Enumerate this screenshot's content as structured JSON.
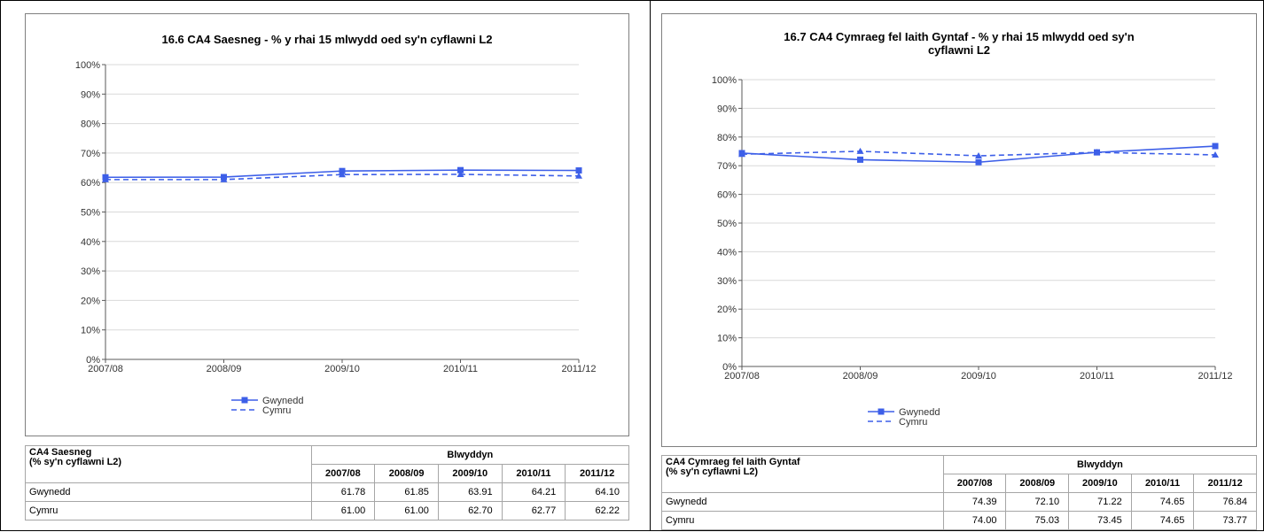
{
  "chart_data": [
    {
      "type": "line",
      "title": "16.6  CA4 Saesneg - % y rhai 15 mlwydd oed sy'n cyflawni L2",
      "categories": [
        "2007/08",
        "2008/09",
        "2009/10",
        "2010/11",
        "2011/12"
      ],
      "ylim": [
        0,
        100
      ],
      "yticks": [
        "0%",
        "10%",
        "20%",
        "30%",
        "40%",
        "50%",
        "60%",
        "70%",
        "80%",
        "90%",
        "100%"
      ],
      "grid": true,
      "legend_position": "bottom-left",
      "series": [
        {
          "name": "Gwynedd",
          "values": [
            61.78,
            61.85,
            63.91,
            64.21,
            64.1
          ],
          "style": "solid",
          "marker": "square"
        },
        {
          "name": "Cymru",
          "values": [
            61.0,
            61.0,
            62.7,
            62.77,
            62.22
          ],
          "style": "dashed",
          "marker": "triangle"
        }
      ],
      "table": {
        "label_line1": "CA4 Saesneg",
        "label_line2": "(% sy'n cyflawni L2)",
        "group_header": "Blwyddyn",
        "years": [
          "2007/08",
          "2008/09",
          "2009/10",
          "2010/11",
          "2011/12"
        ],
        "rows": [
          {
            "name": "Gwynedd",
            "values": [
              "61.78",
              "61.85",
              "63.91",
              "64.21",
              "64.10"
            ]
          },
          {
            "name": "Cymru",
            "values": [
              "61.00",
              "61.00",
              "62.70",
              "62.77",
              "62.22"
            ]
          }
        ]
      }
    },
    {
      "type": "line",
      "title": "16.7  CA4 Cymraeg fel Iaith Gyntaf - % y rhai 15 mlwydd oed sy'n cyflawni L2",
      "title_line1": "16.7  CA4 Cymraeg fel Iaith Gyntaf - % y rhai 15 mlwydd oed sy'n",
      "title_line2": "cyflawni L2",
      "categories": [
        "2007/08",
        "2008/09",
        "2009/10",
        "2010/11",
        "2011/12"
      ],
      "ylim": [
        0,
        100
      ],
      "yticks": [
        "0%",
        "10%",
        "20%",
        "30%",
        "40%",
        "50%",
        "60%",
        "70%",
        "80%",
        "90%",
        "100%"
      ],
      "grid": true,
      "legend_position": "bottom-left",
      "series": [
        {
          "name": "Gwynedd",
          "values": [
            74.39,
            72.1,
            71.22,
            74.65,
            76.84
          ],
          "style": "solid",
          "marker": "square"
        },
        {
          "name": "Cymru",
          "values": [
            74.0,
            75.03,
            73.45,
            74.65,
            73.77
          ],
          "style": "dashed",
          "marker": "triangle"
        }
      ],
      "table": {
        "label_line1": "CA4 Cymraeg fel Iaith Gyntaf",
        "label_line2": "(% sy'n cyflawni L2)",
        "group_header": "Blwyddyn",
        "years": [
          "2007/08",
          "2008/09",
          "2009/10",
          "2010/11",
          "2011/12"
        ],
        "rows": [
          {
            "name": "Gwynedd",
            "values": [
              "74.39",
              "72.10",
              "71.22",
              "74.65",
              "76.84"
            ]
          },
          {
            "name": "Cymru",
            "values": [
              "74.00",
              "75.03",
              "73.45",
              "74.65",
              "73.77"
            ]
          }
        ]
      }
    }
  ],
  "colors": {
    "line": "#3d5fe8",
    "axis": "#595959",
    "grid": "#d9d9d9"
  }
}
